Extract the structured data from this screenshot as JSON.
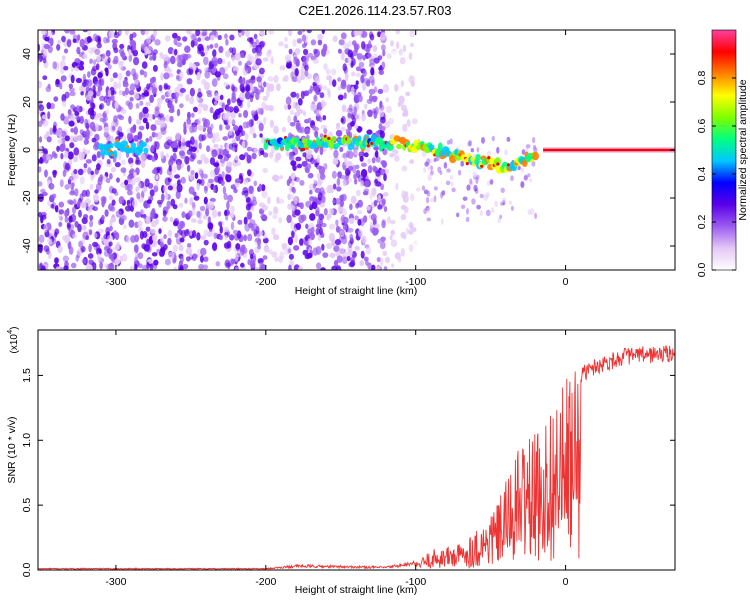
{
  "title": "C2E1.2026.114.23.57.R03",
  "chart_data": [
    {
      "type": "heatmap",
      "name": "spectrogram",
      "xlabel": "Height of straight line (km)",
      "ylabel": "Frequency (Hz)",
      "xlim": [
        -352,
        73
      ],
      "ylim": [
        -50,
        50
      ],
      "xticks": [
        -300,
        -200,
        -100,
        0
      ],
      "yticks": [
        -40,
        -20,
        0,
        20,
        40
      ],
      "colorbar": {
        "label": "Normalized spectral amplitude",
        "range": [
          0.0,
          1.0
        ],
        "ticks": [
          0.0,
          0.2,
          0.4,
          0.6,
          0.8
        ],
        "tick_labels": [
          "0.0",
          "0.2",
          "0.4",
          "0.6",
          "0.8"
        ],
        "colormap": [
          "#ffffff",
          "#e4c8f6",
          "#9b5cf0",
          "#5a00e8",
          "#0000ff",
          "#00c8ff",
          "#00ff80",
          "#80ff00",
          "#ffff00",
          "#ff8000",
          "#ff0000",
          "#ff40a0"
        ]
      },
      "ridge_frequency_hz": [
        {
          "x": -300,
          "y": 1
        },
        {
          "x": -200,
          "y": 2
        },
        {
          "x": -150,
          "y": 3
        },
        {
          "x": -110,
          "y": 3
        },
        {
          "x": -80,
          "y": -1
        },
        {
          "x": -60,
          "y": -4
        },
        {
          "x": -40,
          "y": -7
        },
        {
          "x": -25,
          "y": -3
        },
        {
          "x": -10,
          "y": 0
        },
        {
          "x": 0,
          "y": 0
        },
        {
          "x": 73,
          "y": 0
        }
      ],
      "noise_regions_km": [
        [
          -352,
          -200
        ],
        [
          -185,
          -160
        ],
        [
          -155,
          -120
        ]
      ]
    },
    {
      "type": "line",
      "name": "snr",
      "xlabel": "Height of straight line (km)",
      "ylabel": "SNR (10 * v/v)",
      "scale_label": "(x10",
      "scale_exponent": "4",
      "xlim": [
        -352,
        73
      ],
      "ylim": [
        0,
        1.85
      ],
      "xticks": [
        -300,
        -200,
        -100,
        0
      ],
      "yticks": [
        0.0,
        0.5,
        1.0,
        1.5
      ],
      "ytick_labels": [
        "0.0",
        "0.5",
        "1.0",
        "1.5"
      ],
      "color": "#ee3333",
      "envelope": [
        {
          "x": -352,
          "y": 0.01
        },
        {
          "x": -250,
          "y": 0.01
        },
        {
          "x": -200,
          "y": 0.01
        },
        {
          "x": -180,
          "y": 0.03
        },
        {
          "x": -120,
          "y": 0.02
        },
        {
          "x": -100,
          "y": 0.05
        },
        {
          "x": -90,
          "y": 0.15
        },
        {
          "x": -70,
          "y": 0.2
        },
        {
          "x": -55,
          "y": 0.35
        },
        {
          "x": -45,
          "y": 0.5
        },
        {
          "x": -35,
          "y": 0.8
        },
        {
          "x": -28,
          "y": 1.0
        },
        {
          "x": -20,
          "y": 1.0
        },
        {
          "x": -10,
          "y": 1.2
        },
        {
          "x": 0,
          "y": 1.4
        },
        {
          "x": 10,
          "y": 1.55
        },
        {
          "x": 20,
          "y": 1.62
        },
        {
          "x": 40,
          "y": 1.7
        },
        {
          "x": 73,
          "y": 1.72
        }
      ]
    }
  ]
}
